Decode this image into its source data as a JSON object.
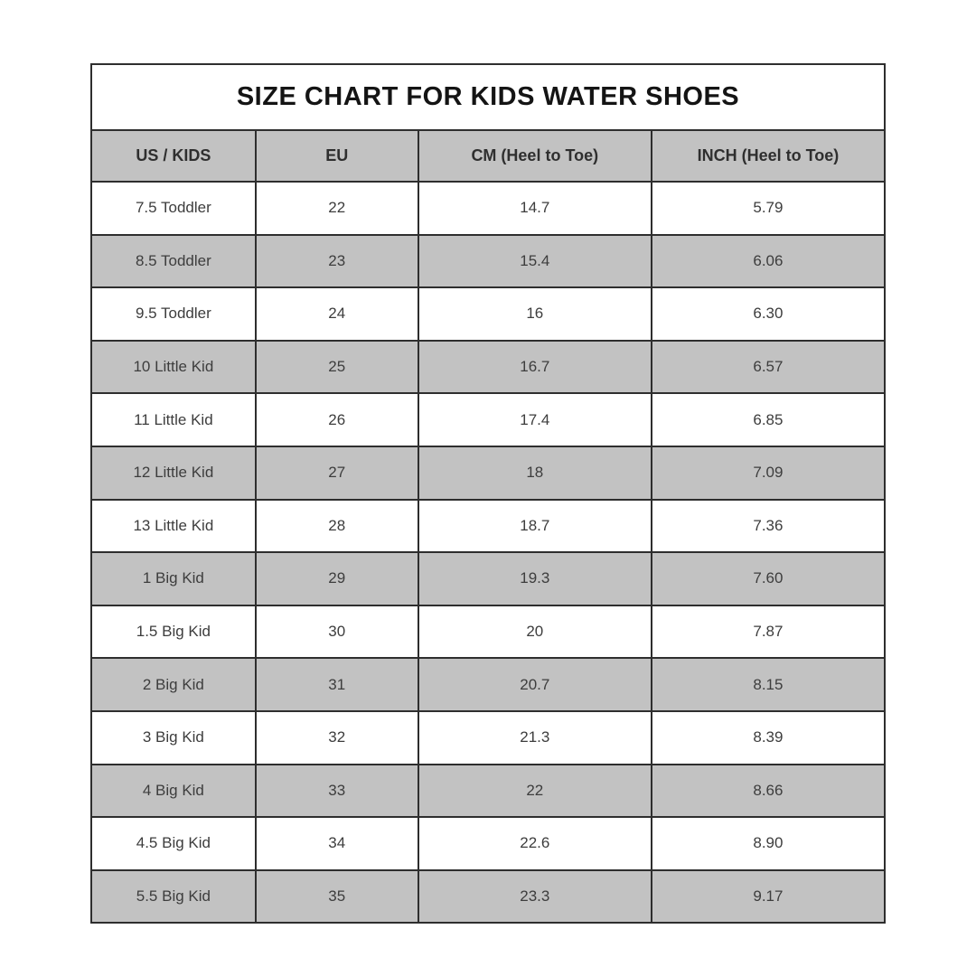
{
  "title": "SIZE CHART FOR KIDS WATER SHOES",
  "colors": {
    "row_alt_bg": "#c2c2c2",
    "header_bg": "#c2c2c2",
    "border": "#2e2e2e",
    "cell_text": "#3d3d3d",
    "title_text": "#141414",
    "page_bg": "#ffffff"
  },
  "chart_data": {
    "type": "table",
    "title": "SIZE CHART FOR KIDS WATER SHOES",
    "columns": [
      "US / KIDS",
      "EU",
      "CM (Heel to Toe)",
      "INCH (Heel to Toe)"
    ],
    "rows": [
      [
        "7.5 Toddler",
        "22",
        "14.7",
        "5.79"
      ],
      [
        "8.5 Toddler",
        "23",
        "15.4",
        "6.06"
      ],
      [
        "9.5 Toddler",
        "24",
        "16",
        "6.30"
      ],
      [
        "10 Little Kid",
        "25",
        "16.7",
        "6.57"
      ],
      [
        "11 Little Kid",
        "26",
        "17.4",
        "6.85"
      ],
      [
        "12 Little Kid",
        "27",
        "18",
        "7.09"
      ],
      [
        "13 Little Kid",
        "28",
        "18.7",
        "7.36"
      ],
      [
        "1 Big Kid",
        "29",
        "19.3",
        "7.60"
      ],
      [
        "1.5 Big Kid",
        "30",
        "20",
        "7.87"
      ],
      [
        "2 Big Kid",
        "31",
        "20.7",
        "8.15"
      ],
      [
        "3 Big Kid",
        "32",
        "21.3",
        "8.39"
      ],
      [
        "4 Big Kid",
        "33",
        "22",
        "8.66"
      ],
      [
        "4.5 Big Kid",
        "34",
        "22.6",
        "8.90"
      ],
      [
        "5.5 Big Kid",
        "35",
        "23.3",
        "9.17"
      ]
    ],
    "layout_hints": {
      "row_striping": "odd rows white, even rows gray, header gray",
      "column_width_pct": [
        20.7,
        20.5,
        29.4,
        29.4
      ]
    }
  }
}
